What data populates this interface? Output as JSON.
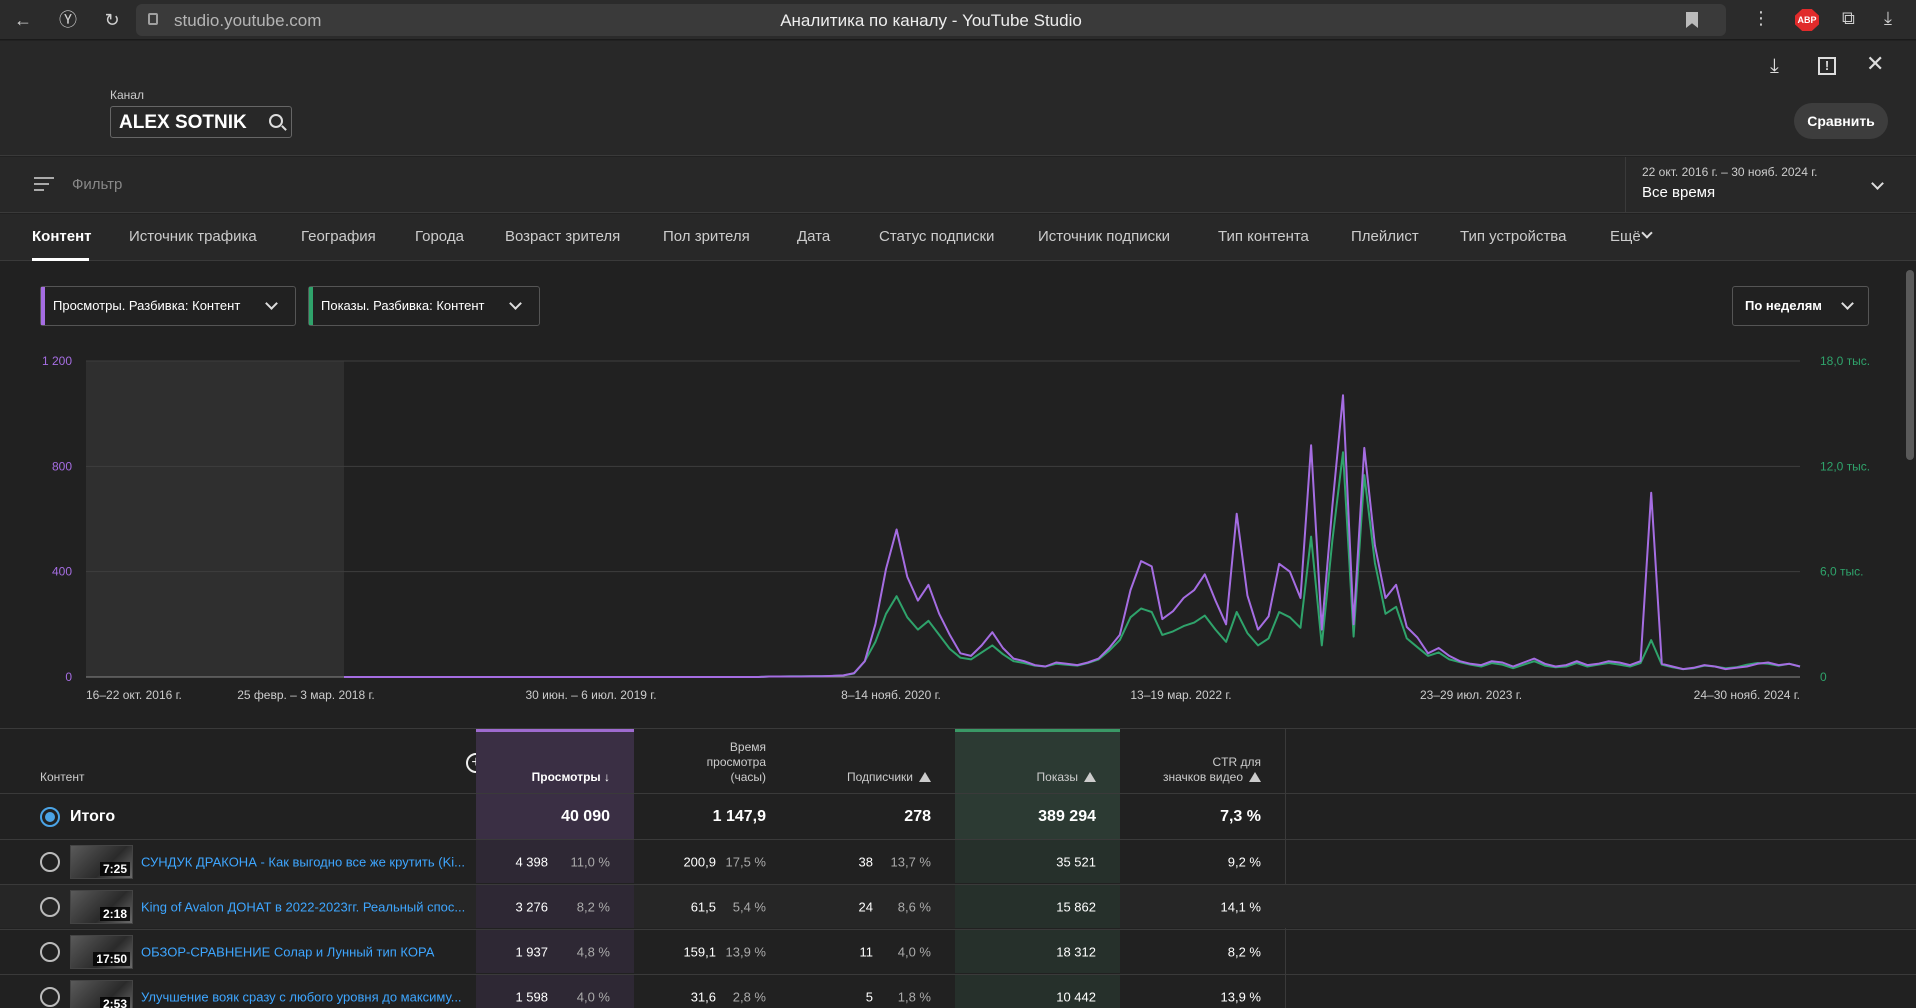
{
  "browser": {
    "url": "studio.youtube.com",
    "title": "Аналитика по каналу - YouTube Studio",
    "abp_label": "ABP"
  },
  "header": {
    "channel_label": "Канал",
    "channel_name": "ALEX SOTNIK",
    "compare_label": "Сравнить"
  },
  "filter": {
    "placeholder": "Фильтр",
    "date_range": "22 окт. 2016 г. – 30 нояб. 2024 г.",
    "date_value": "Все время"
  },
  "tabs": [
    "Контент",
    "Источник трафика",
    "География",
    "Города",
    "Возраст зрителя",
    "Пол зрителя",
    "Дата",
    "Статус подписки",
    "Источник подписки",
    "Тип контента",
    "Плейлист",
    "Тип устройства",
    "Ещё"
  ],
  "selectors": {
    "metric1": "Просмотры. Разбивка: Контент",
    "metric2": "Показы. Разбивка: Контент",
    "period": "По неделям"
  },
  "colors": {
    "views": "#a56de2",
    "impressions": "#2fa36b",
    "link": "#3ea6ff"
  },
  "chart_data": {
    "type": "line",
    "x_tick_labels": [
      "16–22 окт. 2016 г.",
      "25 февр. – 3 мар. 2018 г.",
      "30 июн. – 6 июл. 2019 г.",
      "8–14 нояб. 2020 г.",
      "13–19 мар. 2022 г.",
      "23–29 июл. 2023 г.",
      "24–30 нояб. 2024 г."
    ],
    "y_left_ticks": [
      "0",
      "400",
      "800",
      "1 200"
    ],
    "y_right_ticks": [
      "0",
      "6,0 тыс.",
      "12,0 тыс.",
      "18,0 тыс."
    ],
    "ylim_left": [
      0,
      1200
    ],
    "ylim_right": [
      0,
      18000
    ],
    "series": [
      {
        "name": "Просмотры",
        "axis": "left",
        "values": [
          0,
          0,
          0,
          0,
          0,
          0,
          0,
          0,
          0,
          0,
          0,
          0,
          0,
          0,
          0,
          0,
          0,
          0,
          0,
          0,
          0,
          0,
          0,
          0,
          0,
          0,
          0,
          0,
          0,
          0,
          0,
          0,
          0,
          0,
          0,
          0,
          0,
          0,
          0,
          0,
          2,
          2,
          2,
          2,
          3,
          3,
          4,
          6,
          15,
          60,
          200,
          410,
          560,
          380,
          290,
          350,
          240,
          160,
          90,
          80,
          120,
          170,
          110,
          70,
          60,
          45,
          40,
          55,
          50,
          45,
          55,
          70,
          110,
          160,
          330,
          440,
          420,
          220,
          250,
          300,
          330,
          390,
          290,
          200,
          620,
          310,
          180,
          230,
          430,
          400,
          300,
          880,
          180,
          650,
          1070,
          200,
          870,
          500,
          300,
          350,
          190,
          150,
          90,
          110,
          80,
          60,
          50,
          45,
          60,
          55,
          40,
          55,
          70,
          50,
          40,
          45,
          60,
          45,
          50,
          60,
          55,
          45,
          60,
          700,
          50,
          40,
          30,
          35,
          45,
          40,
          30,
          35,
          40,
          50,
          55,
          45,
          50,
          40
        ]
      },
      {
        "name": "Показы",
        "axis": "right",
        "values": [
          0,
          0,
          0,
          0,
          0,
          0,
          0,
          0,
          0,
          0,
          0,
          0,
          0,
          0,
          0,
          0,
          0,
          0,
          0,
          0,
          0,
          0,
          0,
          0,
          0,
          0,
          0,
          0,
          0,
          0,
          0,
          0,
          0,
          0,
          0,
          0,
          0,
          0,
          0,
          0,
          30,
          30,
          40,
          40,
          45,
          50,
          60,
          90,
          200,
          900,
          2000,
          3600,
          4600,
          3400,
          2700,
          3200,
          2400,
          1600,
          1100,
          1000,
          1400,
          1800,
          1300,
          900,
          800,
          650,
          600,
          750,
          700,
          650,
          800,
          1000,
          1500,
          2100,
          3400,
          3900,
          3700,
          2400,
          2600,
          2900,
          3100,
          3500,
          2700,
          2000,
          3700,
          2500,
          1800,
          2200,
          3700,
          3400,
          2800,
          8000,
          1800,
          7800,
          12800,
          2300,
          11500,
          6500,
          3600,
          4000,
          2200,
          1700,
          1200,
          1400,
          1000,
          850,
          700,
          600,
          800,
          700,
          500,
          700,
          900,
          650,
          550,
          600,
          800,
          600,
          700,
          800,
          700,
          600,
          800,
          2100,
          700,
          550,
          450,
          500,
          650,
          600,
          500,
          550,
          700,
          800,
          750,
          650,
          750,
          600
        ]
      }
    ],
    "shaded_period": "16–22 окт. 2016 г. – 25 февр. – 3 мар. 2018 г.",
    "grid": true
  },
  "table": {
    "headers": {
      "content": "Контент",
      "views": "Просмотры",
      "watch_time": [
        "Время",
        "просмотра",
        "(часы)"
      ],
      "subscribers": "Подписчики",
      "impressions": "Показы",
      "ctr": [
        "CTR для",
        "значков видео"
      ]
    },
    "total": {
      "label": "Итого",
      "views": "40 090",
      "watch_time": "1 147,9",
      "subscribers": "278",
      "impressions": "389 294",
      "ctr": "7,3 %"
    },
    "rows": [
      {
        "duration": "7:25",
        "title": "СУНДУК ДРАКОНА - Как выгодно все же крутить (Ki...",
        "views": "4 398",
        "views_pct": "11,0 %",
        "watch": "200,9",
        "watch_pct": "17,5 %",
        "subs": "38",
        "subs_pct": "13,7 %",
        "impr": "35 521",
        "ctr": "9,2 %"
      },
      {
        "duration": "2:18",
        "title": "King of Avalon ДОНАТ в 2022-2023гг. Реальный спос...",
        "views": "3 276",
        "views_pct": "8,2 %",
        "watch": "61,5",
        "watch_pct": "5,4 %",
        "subs": "24",
        "subs_pct": "8,6 %",
        "impr": "15 862",
        "ctr": "14,1 %"
      },
      {
        "duration": "17:50",
        "title": "ОБЗОР-СРАВНЕНИЕ Солар и Лунный тип КОРА",
        "views": "1 937",
        "views_pct": "4,8 %",
        "watch": "159,1",
        "watch_pct": "13,9 %",
        "subs": "11",
        "subs_pct": "4,0 %",
        "impr": "18 312",
        "ctr": "8,2 %"
      },
      {
        "duration": "2:53",
        "title": "Улучшение вояк сразу с любого уровня до максиму...",
        "views": "1 598",
        "views_pct": "4,0 %",
        "watch": "31,6",
        "watch_pct": "2,8 %",
        "subs": "5",
        "subs_pct": "1,8 %",
        "impr": "10 442",
        "ctr": "13,9 %"
      }
    ]
  }
}
